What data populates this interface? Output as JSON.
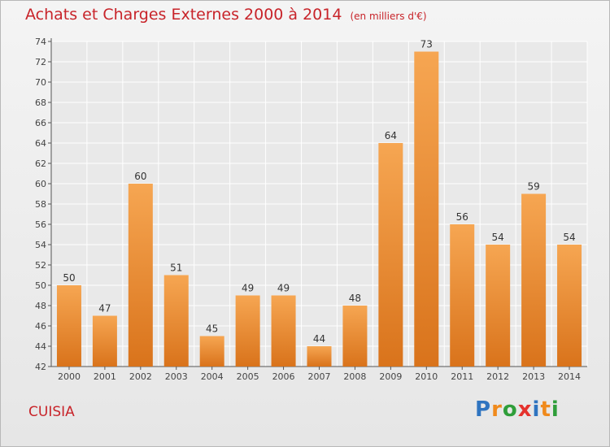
{
  "header": {
    "title": "Achats et Charges Externes 2000 à 2014",
    "unit": "(en milliers d'€)"
  },
  "footer": {
    "place": "CUISIA",
    "brand": [
      "P",
      "r",
      "o",
      "x",
      "i",
      "t",
      "i"
    ],
    "brand_colors": [
      "#2f74c0",
      "#f08a1c",
      "#2f9e3a",
      "#e5322d",
      "#2f74c0",
      "#f08a1c",
      "#2f9e3a"
    ]
  },
  "chart_data": {
    "type": "bar",
    "categories": [
      "2000",
      "2001",
      "2002",
      "2003",
      "2004",
      "2005",
      "2006",
      "2007",
      "2008",
      "2009",
      "2010",
      "2011",
      "2012",
      "2013",
      "2014"
    ],
    "values": [
      50,
      47,
      60,
      51,
      45,
      49,
      49,
      44,
      48,
      64,
      73,
      56,
      54,
      59,
      54
    ],
    "ylim": [
      42,
      74
    ],
    "yticks": [
      42,
      44,
      46,
      48,
      50,
      52,
      54,
      56,
      58,
      60,
      62,
      64,
      66,
      68,
      70,
      72,
      74
    ],
    "grid": true,
    "bar_color": "#ee8a2e",
    "title": "Achats et Charges Externes 2000 à 2014",
    "xlabel": "",
    "ylabel": ""
  }
}
